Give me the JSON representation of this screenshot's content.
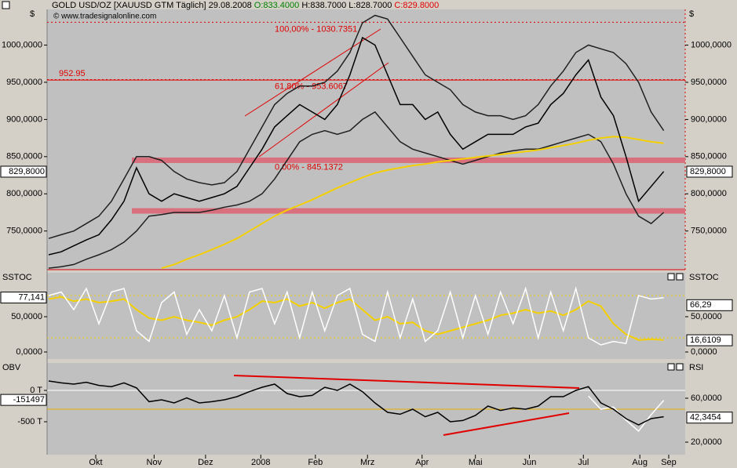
{
  "header": {
    "symbol": "GOLD USD/OZ [XAUUSD GTM  Täglich] 29.08.2008",
    "open": "O:833.4000",
    "high_low": "H:838.7000 L:828.7000",
    "close": "C:829.8000",
    "watermark": "© www.tradesignalonline.com",
    "currency_left": "$",
    "currency_right": "$"
  },
  "chart_data": [
    {
      "type": "line",
      "ylim": [
        698,
        1048
      ],
      "yticks": [
        {
          "value": 1000,
          "label": "1000,0000"
        },
        {
          "value": 950,
          "label": "950,0000"
        },
        {
          "value": 900,
          "label": "900,0000"
        },
        {
          "value": 850,
          "label": "850,0000"
        },
        {
          "value": 800,
          "label": "800,0000"
        },
        {
          "value": 750,
          "label": "750,0000"
        }
      ],
      "levels": [
        {
          "value": 1030.7351,
          "label": "100,00% - 1030.7351",
          "style": "dotted",
          "color": "#e00000"
        },
        {
          "value": 953.6067,
          "label": "61,80% - 953.6067",
          "style": "dotted",
          "color": "#e00000"
        },
        {
          "value": 952.95,
          "label": "952.95",
          "style": "solid",
          "color": "#e00000"
        },
        {
          "value": 845.1372,
          "label": "0,00% - 845.1372",
          "style": "band",
          "color": "#d8707e"
        },
        {
          "value": 777,
          "style": "band",
          "color": "#d8707e"
        }
      ],
      "series": [
        {
          "name": "Upper Band",
          "color": "#202020",
          "values": [
            740,
            745,
            750,
            760,
            770,
            790,
            820,
            850,
            850,
            845,
            830,
            820,
            815,
            812,
            815,
            830,
            860,
            890,
            920,
            935,
            945,
            945,
            950,
            965,
            990,
            1030,
            1040,
            1035,
            1010,
            985,
            960,
            950,
            940,
            920,
            910,
            905,
            905,
            900,
            905,
            920,
            945,
            965,
            990,
            1000,
            995,
            990,
            975,
            950,
            910,
            885
          ]
        },
        {
          "name": "Lower Band",
          "color": "#202020",
          "values": [
            700,
            702,
            705,
            712,
            718,
            725,
            735,
            750,
            770,
            772,
            775,
            775,
            775,
            778,
            782,
            785,
            790,
            800,
            820,
            845,
            870,
            880,
            885,
            880,
            885,
            900,
            910,
            890,
            870,
            860,
            855,
            850,
            845,
            840,
            845,
            850,
            855,
            858,
            860,
            860,
            865,
            870,
            875,
            880,
            870,
            840,
            800,
            770,
            760,
            775
          ]
        },
        {
          "name": "MA 200",
          "color": "#f4d000",
          "values": [
            null,
            null,
            null,
            null,
            null,
            null,
            null,
            null,
            null,
            700,
            705,
            712,
            718,
            725,
            732,
            740,
            750,
            760,
            770,
            778,
            785,
            792,
            800,
            808,
            815,
            822,
            828,
            832,
            835,
            838,
            840,
            843,
            845,
            847,
            849,
            851,
            853,
            855,
            857,
            859,
            862,
            865,
            868,
            872,
            875,
            877,
            876,
            873,
            870,
            868
          ]
        },
        {
          "name": "GOLD",
          "color": "#000000",
          "values": [
            718,
            722,
            730,
            738,
            745,
            765,
            790,
            835,
            800,
            790,
            800,
            795,
            790,
            795,
            800,
            810,
            835,
            860,
            890,
            905,
            920,
            910,
            900,
            920,
            960,
            1010,
            1000,
            960,
            920,
            920,
            900,
            910,
            880,
            860,
            870,
            880,
            880,
            880,
            890,
            895,
            920,
            935,
            960,
            980,
            930,
            905,
            850,
            790,
            810,
            830
          ]
        }
      ],
      "markers": [
        {
          "value": 829.8,
          "label": "829,8000",
          "side": "both"
        }
      ],
      "pane_label_left": "$",
      "pane_label_right": "$"
    },
    {
      "type": "line",
      "ylim": [
        -10,
        112.2
      ],
      "yticks": [
        {
          "value": 50,
          "label": "50,0000"
        },
        {
          "value": 0,
          "label": "0,0000"
        }
      ],
      "levels": [
        {
          "value": 80,
          "style": "dotted",
          "color": "#f4d000"
        },
        {
          "value": 20,
          "style": "dotted",
          "color": "#f4d000"
        }
      ],
      "series": [
        {
          "name": "Slow",
          "color": "#f4d000",
          "values": [
            75,
            78,
            72,
            75,
            70,
            72,
            75,
            60,
            48,
            45,
            50,
            45,
            42,
            38,
            45,
            50,
            60,
            72,
            70,
            75,
            65,
            70,
            62,
            70,
            75,
            60,
            45,
            50,
            40,
            42,
            30,
            25,
            30,
            35,
            40,
            45,
            52,
            55,
            60,
            55,
            58,
            52,
            60,
            72,
            65,
            40,
            25,
            17,
            18,
            17
          ]
        },
        {
          "name": "%K",
          "color": "#ffffff",
          "values": [
            80,
            85,
            60,
            90,
            40,
            85,
            90,
            30,
            15,
            70,
            85,
            25,
            60,
            30,
            80,
            20,
            85,
            90,
            40,
            85,
            20,
            85,
            30,
            80,
            90,
            25,
            15,
            85,
            20,
            75,
            15,
            30,
            85,
            20,
            80,
            25,
            85,
            40,
            90,
            20,
            85,
            30,
            90,
            20,
            10,
            15,
            12,
            80,
            75,
            77
          ]
        }
      ],
      "markers": [
        {
          "value": 77.141,
          "label": "77,141",
          "side": "left"
        },
        {
          "value": 66.29,
          "label": "66,29",
          "side": "right"
        },
        {
          "value": 16.6109,
          "label": "16,6109",
          "side": "right"
        }
      ],
      "pane_label_left": "SSTOC",
      "pane_label_right": "SSTOC"
    },
    {
      "type": "line",
      "ylim": [
        -1025,
        437.5
      ],
      "y2lim": [
        8.6,
        92.1
      ],
      "yticks": [
        {
          "value": 0,
          "label": "0 T"
        },
        {
          "value": -500,
          "label": "-500 T"
        }
      ],
      "y2ticks": [
        {
          "value": 60,
          "label": "60,0000"
        },
        {
          "value": 20,
          "label": "20,0000"
        }
      ],
      "levels": [
        {
          "value": 0,
          "style": "solid",
          "color": "#ffffff"
        },
        {
          "value": 50,
          "style": "solid",
          "color": "#e8b000",
          "axis": "y2"
        }
      ],
      "series": [
        {
          "name": "RSI",
          "color": "#ffffff",
          "axis": "y2",
          "values": [
            null,
            null,
            null,
            null,
            null,
            null,
            null,
            null,
            null,
            null,
            null,
            null,
            null,
            null,
            null,
            null,
            null,
            null,
            null,
            null,
            null,
            null,
            null,
            null,
            null,
            null,
            null,
            null,
            null,
            null,
            null,
            null,
            null,
            null,
            null,
            null,
            null,
            null,
            null,
            null,
            null,
            null,
            null,
            62,
            50,
            52,
            40,
            30,
            45,
            58
          ]
        },
        {
          "name": "OBV",
          "color": "#000000",
          "values": [
            150,
            120,
            100,
            130,
            80,
            60,
            120,
            40,
            -180,
            -150,
            -200,
            -120,
            -200,
            -180,
            -150,
            -100,
            -20,
            50,
            100,
            -50,
            -100,
            -80,
            50,
            0,
            100,
            -20,
            -200,
            -350,
            -380,
            -300,
            -420,
            -350,
            -500,
            -480,
            -400,
            -250,
            -320,
            -280,
            -300,
            -250,
            -100,
            -100,
            0,
            60,
            -200,
            -300,
            -450,
            -550,
            -450,
            -420
          ]
        }
      ],
      "markers": [
        {
          "value": -151.497,
          "label": "-151497",
          "side": "left"
        },
        {
          "value": 42.3454,
          "label": "42,3454",
          "side": "right",
          "axis": "y2"
        }
      ],
      "pane_label_left": "OBV",
      "pane_label_right": "RSI",
      "xlim": [
        0,
        49.4
      ],
      "xticks": [
        {
          "value": 3.75,
          "label": "Okt"
        },
        {
          "value": 8.4,
          "label": "Nov"
        },
        {
          "value": 12.5,
          "label": "Dez"
        },
        {
          "value": 16.9,
          "label": "2008"
        },
        {
          "value": 21.25,
          "label": "Feb"
        },
        {
          "value": 25.4,
          "label": "Mrz"
        },
        {
          "value": 29.75,
          "label": "Apr"
        },
        {
          "value": 34,
          "label": "Mai"
        },
        {
          "value": 38.3,
          "label": "Jun"
        },
        {
          "value": 42.6,
          "label": "Jul"
        },
        {
          "value": 47.1,
          "label": "Aug"
        },
        {
          "value": 49.4,
          "label": "Sep"
        }
      ]
    }
  ]
}
